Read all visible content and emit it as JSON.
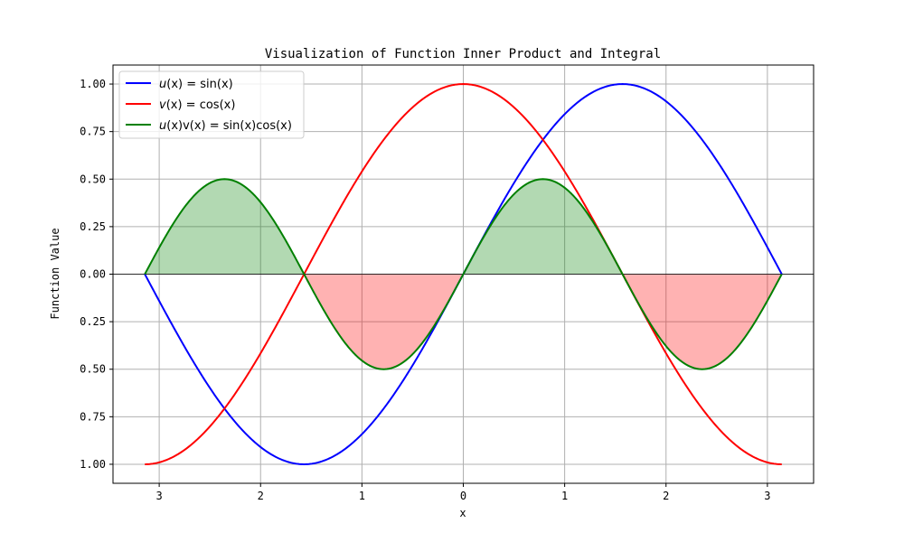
{
  "chart_data": {
    "type": "line",
    "title": "Visualization of Function Inner Product and Integral",
    "xlabel": "x",
    "ylabel": "Function Value",
    "xlim": [
      -3.4558,
      3.4558
    ],
    "ylim": [
      -1.1,
      1.1
    ],
    "grid": true,
    "legend_position": "top-left",
    "x_ticks": [
      {
        "value": -3,
        "label": "3"
      },
      {
        "value": -2,
        "label": "2"
      },
      {
        "value": -1,
        "label": "1"
      },
      {
        "value": 0,
        "label": "0"
      },
      {
        "value": 1,
        "label": "1"
      },
      {
        "value": 2,
        "label": "2"
      },
      {
        "value": 3,
        "label": "3"
      }
    ],
    "y_ticks": [
      {
        "value": 1.0,
        "label": "1.00"
      },
      {
        "value": 0.75,
        "label": "0.75"
      },
      {
        "value": 0.5,
        "label": "0.50"
      },
      {
        "value": 0.25,
        "label": "0.25"
      },
      {
        "value": 0.0,
        "label": "0.00"
      },
      {
        "value": -0.25,
        "label": "0.25"
      },
      {
        "value": -0.5,
        "label": "0.50"
      },
      {
        "value": -0.75,
        "label": "0.75"
      },
      {
        "value": -1.0,
        "label": "1.00"
      }
    ],
    "domain": [
      -3.14159,
      3.14159
    ],
    "series": [
      {
        "name": "u(x) = sin(x)",
        "function": "sin",
        "color": "#0000ff"
      },
      {
        "name": "v(x) = cos(x)",
        "function": "cos",
        "color": "#ff0000"
      },
      {
        "name": "u(x)v(x) = sin(x)cos(x)",
        "function": "sincos",
        "color": "#008000"
      }
    ],
    "fills": [
      {
        "region": "product > 0",
        "color": "#008000",
        "opacity": 0.3
      },
      {
        "region": "product < 0",
        "color": "#ff0000",
        "opacity": 0.3
      }
    ],
    "zero_line": true
  },
  "legend": {
    "items": [
      {
        "prefix": "u",
        "mid": "(x) = sin(x)"
      },
      {
        "prefix": "v",
        "mid": "(x) = cos(x)"
      },
      {
        "prefix": "u",
        "mid": "(x)v(x) = sin(x)cos(x)"
      }
    ]
  }
}
